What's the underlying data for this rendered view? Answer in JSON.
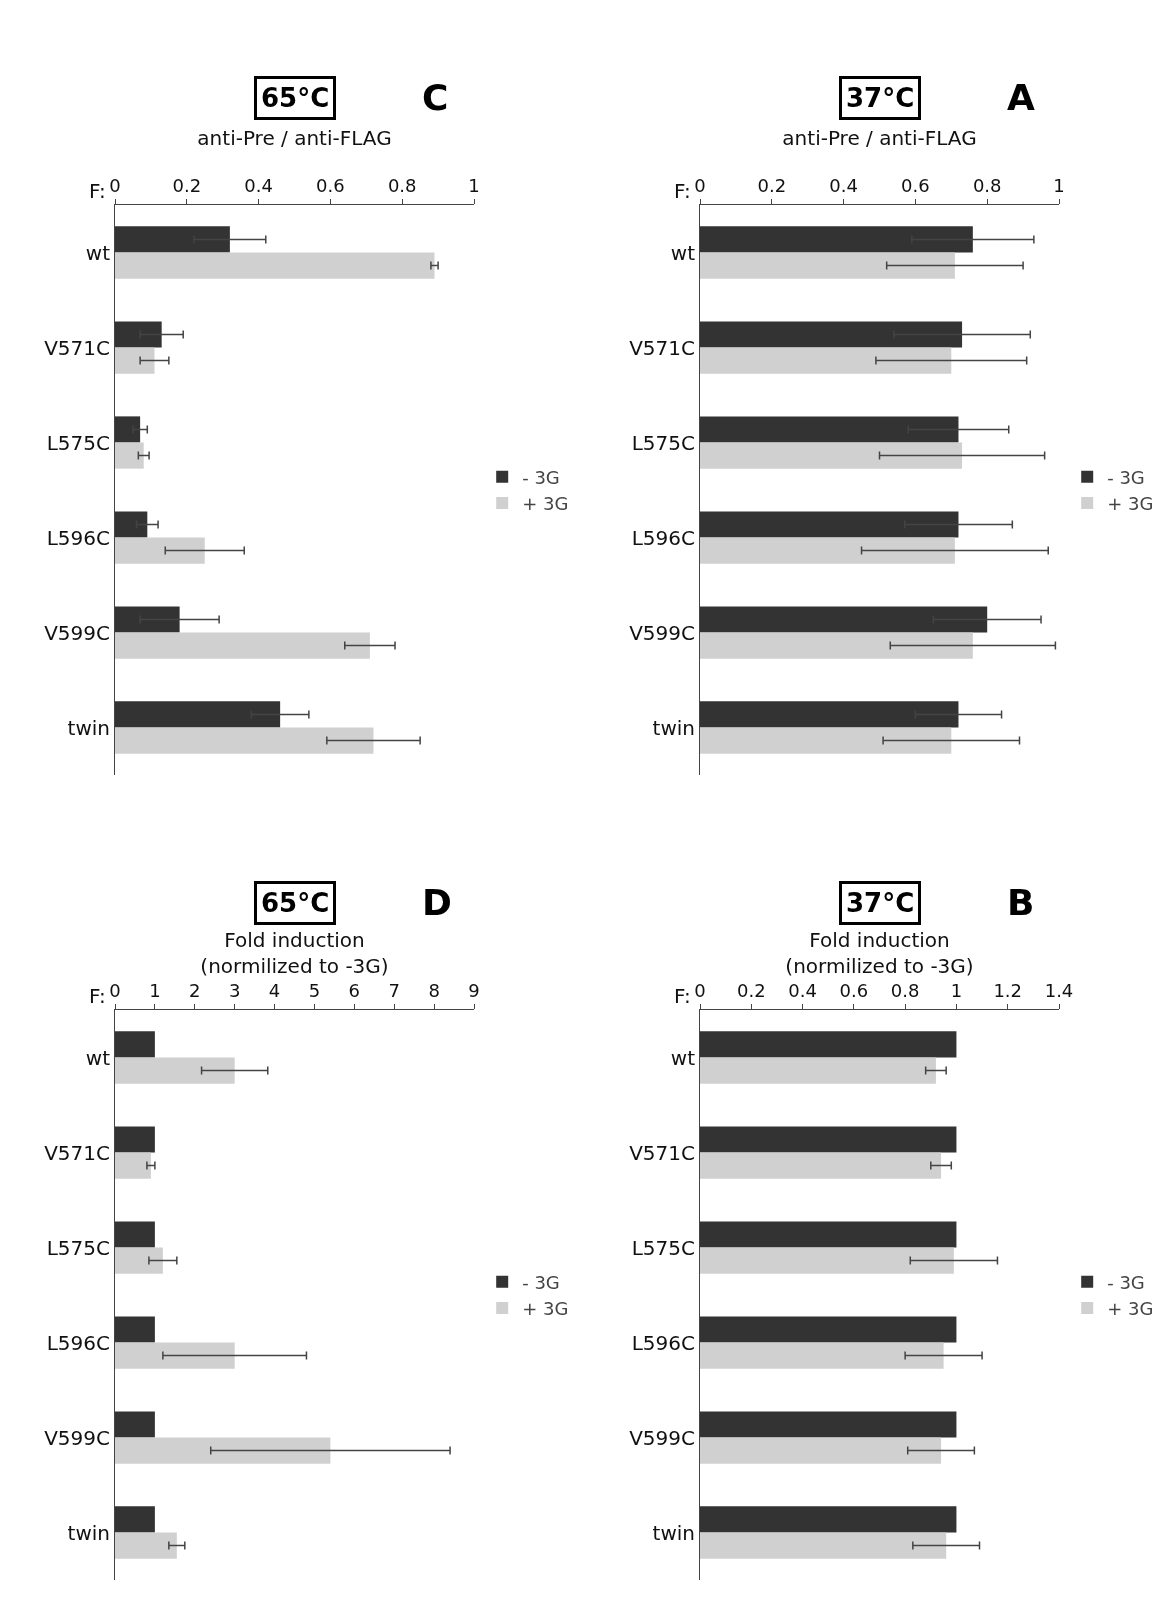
{
  "chart_data": [
    {
      "type": "bar",
      "orientation": "horizontal",
      "title": "37°C",
      "xlabel": "anti-Pre / anti-FLAG",
      "annotations": [
        "A",
        "F:"
      ],
      "categories": [
        "wt",
        "V571C",
        "L575C",
        "L596C",
        "V599C",
        "twin"
      ],
      "xlim": [
        0,
        1
      ],
      "xticks": [
        0,
        0.2,
        0.4,
        0.6,
        0.8,
        1
      ],
      "grid": false,
      "legend": "right",
      "series": [
        {
          "name": "- 3G",
          "color": "#333333",
          "values": [
            0.76,
            0.73,
            0.72,
            0.72,
            0.8,
            0.72
          ],
          "errors": [
            0.17,
            0.19,
            0.14,
            0.15,
            0.15,
            0.12
          ]
        },
        {
          "name": "+ 3G",
          "color": "#d0d0d0",
          "values": [
            0.71,
            0.7,
            0.73,
            0.71,
            0.76,
            0.7
          ],
          "errors": [
            0.19,
            0.21,
            0.23,
            0.26,
            0.23,
            0.19
          ]
        }
      ]
    },
    {
      "type": "bar",
      "orientation": "horizontal",
      "title": "37°C",
      "xlabel": "Fold induction\n(normilized to -3G)",
      "annotations": [
        "B",
        "F:"
      ],
      "categories": [
        "wt",
        "V571C",
        "L575C",
        "L596C",
        "V599C",
        "twin"
      ],
      "xlim": [
        0,
        1.4
      ],
      "xticks": [
        0,
        0.2,
        0.4,
        0.6,
        0.8,
        1,
        1.2,
        1.4
      ],
      "grid": false,
      "legend": "right",
      "series": [
        {
          "name": "- 3G",
          "color": "#333333",
          "values": [
            1,
            1,
            1,
            1,
            1,
            1
          ]
        },
        {
          "name": "+ 3G",
          "color": "#d0d0d0",
          "values": [
            0.92,
            0.94,
            0.99,
            0.95,
            0.94,
            0.96
          ],
          "errors": [
            0.04,
            0.04,
            0.17,
            0.15,
            0.13,
            0.13
          ]
        }
      ]
    },
    {
      "type": "bar",
      "orientation": "horizontal",
      "title": "65°C",
      "xlabel": "anti-Pre / anti-FLAG",
      "annotations": [
        "C",
        "F:"
      ],
      "categories": [
        "wt",
        "V571C",
        "L575C",
        "L596C",
        "V599C",
        "twin"
      ],
      "xlim": [
        0,
        1
      ],
      "xticks": [
        0,
        0.2,
        0.4,
        0.6,
        0.8,
        1
      ],
      "grid": false,
      "legend": "right",
      "series": [
        {
          "name": "- 3G",
          "color": "#333333",
          "values": [
            0.32,
            0.13,
            0.07,
            0.09,
            0.18,
            0.46
          ],
          "errors": [
            0.1,
            0.06,
            0.02,
            0.03,
            0.11,
            0.08
          ]
        },
        {
          "name": "+ 3G",
          "color": "#d0d0d0",
          "values": [
            0.89,
            0.11,
            0.08,
            0.25,
            0.71,
            0.72
          ],
          "errors": [
            0.01,
            0.04,
            0.015,
            0.11,
            0.07,
            0.13
          ]
        }
      ]
    },
    {
      "type": "bar",
      "orientation": "horizontal",
      "title": "65°C",
      "xlabel": "Fold induction\n(normilized to -3G)",
      "annotations": [
        "D",
        "F:"
      ],
      "categories": [
        "wt",
        "V571C",
        "L575C",
        "L596C",
        "V599C",
        "twin"
      ],
      "xlim": [
        0,
        9
      ],
      "xticks": [
        0,
        1,
        2,
        3,
        4,
        5,
        6,
        7,
        8,
        9
      ],
      "grid": false,
      "legend": "right",
      "series": [
        {
          "name": "- 3G",
          "color": "#333333",
          "values": [
            1,
            1,
            1,
            1,
            1,
            1
          ]
        },
        {
          "name": "+ 3G",
          "color": "#d0d0d0",
          "values": [
            3,
            0.9,
            1.2,
            3,
            5.4,
            1.55
          ],
          "errors": [
            0.83,
            0.1,
            0.35,
            1.8,
            3,
            0.2
          ]
        }
      ]
    }
  ]
}
